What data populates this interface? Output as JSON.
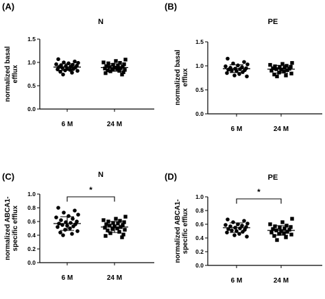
{
  "chart_data": [
    {
      "panel": "(A)",
      "title": "N",
      "type": "scatter",
      "ylabel": [
        "normalized basal",
        "efflux"
      ],
      "categories": [
        "6 M",
        "24 M"
      ],
      "ylim": [
        0,
        1.5
      ],
      "yticks": [
        "0.0",
        "0.5",
        "1.0",
        "1.5"
      ],
      "series": [
        {
          "category": "6 M",
          "marker": "circle",
          "mean": 0.9,
          "sd": 0.07,
          "values": [
            1.07,
            1.02,
            1.0,
            0.99,
            0.98,
            0.96,
            0.95,
            0.94,
            0.93,
            0.92,
            0.91,
            0.9,
            0.89,
            0.88,
            0.87,
            0.86,
            0.85,
            0.84,
            0.83,
            0.82,
            0.8,
            0.78,
            0.74
          ]
        },
        {
          "category": "24 M",
          "marker": "square",
          "mean": 0.89,
          "sd": 0.08,
          "values": [
            1.06,
            1.03,
            1.0,
            0.99,
            0.98,
            0.96,
            0.95,
            0.93,
            0.92,
            0.91,
            0.9,
            0.89,
            0.88,
            0.87,
            0.86,
            0.85,
            0.84,
            0.83,
            0.82,
            0.81,
            0.79,
            0.77,
            0.74
          ]
        }
      ]
    },
    {
      "panel": "(B)",
      "title": "PE",
      "type": "scatter",
      "ylabel": [
        "normalized basal",
        "efflux"
      ],
      "categories": [
        "6 M",
        "24 M"
      ],
      "ylim": [
        0,
        1.5
      ],
      "yticks": [
        "0.0",
        "0.5",
        "1.0",
        "1.5"
      ],
      "series": [
        {
          "category": "6 M",
          "marker": "circle",
          "mean": 0.94,
          "sd": 0.08,
          "values": [
            1.15,
            1.08,
            1.05,
            1.03,
            1.01,
            0.99,
            0.97,
            0.96,
            0.95,
            0.94,
            0.93,
            0.92,
            0.91,
            0.9,
            0.89,
            0.87,
            0.85,
            0.83,
            0.8,
            0.78
          ]
        },
        {
          "category": "24 M",
          "marker": "square",
          "mean": 0.93,
          "sd": 0.08,
          "values": [
            1.06,
            1.04,
            1.02,
            1.0,
            0.99,
            0.98,
            0.97,
            0.96,
            0.95,
            0.94,
            0.93,
            0.92,
            0.91,
            0.9,
            0.88,
            0.86,
            0.84,
            0.82,
            0.8,
            0.78
          ]
        }
      ]
    },
    {
      "panel": "(C)",
      "title": "N",
      "type": "scatter",
      "ylabel": [
        "normalized ABCA1-",
        "specific efflux"
      ],
      "categories": [
        "6 M",
        "24 M"
      ],
      "ylim": [
        0,
        1.0
      ],
      "yticks": [
        "0.0",
        "0.2",
        "0.4",
        "0.6",
        "0.8",
        "1.0"
      ],
      "significance": "*",
      "series": [
        {
          "category": "6 M",
          "marker": "circle",
          "mean": 0.57,
          "sd": 0.1,
          "values": [
            0.8,
            0.76,
            0.73,
            0.7,
            0.68,
            0.66,
            0.64,
            0.62,
            0.6,
            0.59,
            0.58,
            0.57,
            0.56,
            0.55,
            0.54,
            0.53,
            0.52,
            0.5,
            0.48,
            0.46,
            0.44,
            0.42,
            0.4
          ]
        },
        {
          "category": "24 M",
          "marker": "square",
          "mean": 0.52,
          "sd": 0.08,
          "values": [
            0.67,
            0.64,
            0.62,
            0.61,
            0.6,
            0.59,
            0.58,
            0.57,
            0.56,
            0.55,
            0.54,
            0.53,
            0.52,
            0.51,
            0.5,
            0.49,
            0.48,
            0.47,
            0.45,
            0.43,
            0.41,
            0.39,
            0.37
          ]
        }
      ]
    },
    {
      "panel": "(D)",
      "title": "PE",
      "type": "scatter",
      "ylabel": [
        "normalized ABCA1-",
        "specific efflux"
      ],
      "categories": [
        "6 M",
        "24 M"
      ],
      "ylim": [
        0,
        1.0
      ],
      "yticks": [
        "0.0",
        "0.2",
        "0.4",
        "0.6",
        "0.8",
        "1.0"
      ],
      "significance": "*",
      "series": [
        {
          "category": "6 M",
          "marker": "circle",
          "mean": 0.55,
          "sd": 0.07,
          "values": [
            0.67,
            0.65,
            0.63,
            0.61,
            0.6,
            0.59,
            0.58,
            0.57,
            0.56,
            0.55,
            0.54,
            0.53,
            0.52,
            0.51,
            0.5,
            0.49,
            0.48,
            0.46,
            0.44,
            0.42
          ]
        },
        {
          "category": "24 M",
          "marker": "square",
          "mean": 0.51,
          "sd": 0.07,
          "values": [
            0.68,
            0.63,
            0.6,
            0.58,
            0.57,
            0.56,
            0.55,
            0.54,
            0.53,
            0.52,
            0.51,
            0.5,
            0.49,
            0.48,
            0.47,
            0.46,
            0.45,
            0.43,
            0.41,
            0.37
          ]
        }
      ]
    }
  ]
}
